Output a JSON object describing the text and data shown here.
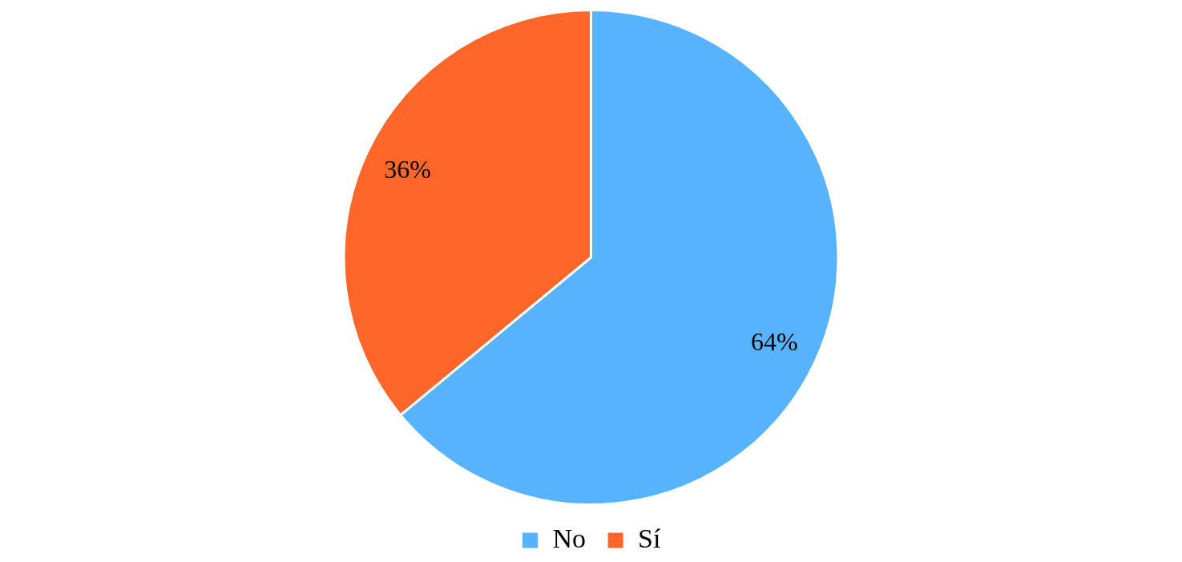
{
  "chart_data": {
    "type": "pie",
    "categories": [
      "No",
      "Sí"
    ],
    "values": [
      64,
      36
    ],
    "colors": [
      "#57b3fe",
      "#ff6629"
    ],
    "value_labels": [
      "64%",
      "36%"
    ],
    "legend": "bottom"
  }
}
